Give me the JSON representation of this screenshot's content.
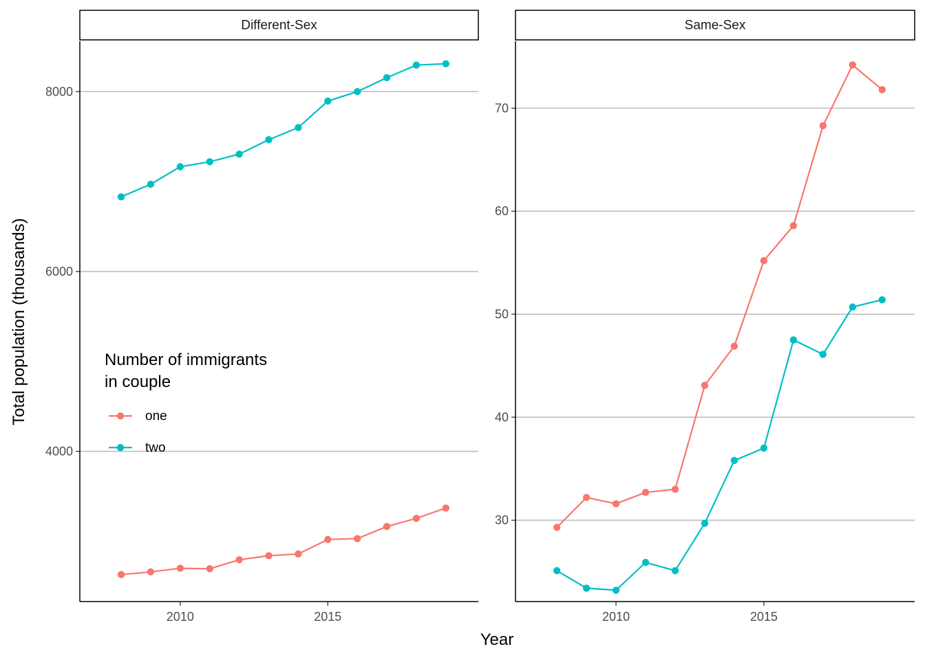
{
  "chart_data": [
    {
      "type": "line",
      "panel": "Different-Sex",
      "x": [
        2008,
        2009,
        2010,
        2011,
        2012,
        2013,
        2014,
        2015,
        2016,
        2017,
        2018,
        2019
      ],
      "series": [
        {
          "name": "one",
          "color": "#F8766D",
          "values": [
            2630,
            2660,
            2700,
            2695,
            2795,
            2840,
            2860,
            3020,
            3030,
            3165,
            3255,
            3370
          ]
        },
        {
          "name": "two",
          "color": "#00BFC4",
          "values": [
            6830,
            6970,
            7165,
            7220,
            7305,
            7465,
            7600,
            7895,
            8000,
            8155,
            8295,
            8310
          ]
        }
      ],
      "xticks": [
        2010,
        2015
      ],
      "yticks": [
        4000,
        6000,
        8000
      ],
      "xlim": [
        2006.6,
        2020.1
      ],
      "ylim": [
        2330,
        8560
      ],
      "grid": true
    },
    {
      "type": "line",
      "panel": "Same-Sex",
      "x": [
        2008,
        2009,
        2010,
        2011,
        2012,
        2013,
        2014,
        2015,
        2016,
        2017,
        2018,
        2019
      ],
      "series": [
        {
          "name": "one",
          "color": "#F8766D",
          "values": [
            29.3,
            32.2,
            31.6,
            32.7,
            33.0,
            43.1,
            46.9,
            55.2,
            58.6,
            68.3,
            74.2,
            71.8
          ]
        },
        {
          "name": "two",
          "color": "#00BFC4",
          "values": [
            25.1,
            23.4,
            23.2,
            25.9,
            25.1,
            29.7,
            35.8,
            37.0,
            47.5,
            46.1,
            50.7,
            51.4
          ]
        }
      ],
      "xticks": [
        2010,
        2015
      ],
      "yticks": [
        30,
        40,
        50,
        60,
        70
      ],
      "xlim": [
        2006.6,
        2020.1
      ],
      "ylim": [
        22.1,
        76.5
      ],
      "grid": true
    }
  ],
  "axes": {
    "xlabel": "Year",
    "ylabel": "Total population (thousands)"
  },
  "legend": {
    "title_line1": "Number of immigrants",
    "title_line2": "in couple",
    "entries": [
      "one",
      "two"
    ],
    "placement": "inside left panel, middle-left"
  }
}
